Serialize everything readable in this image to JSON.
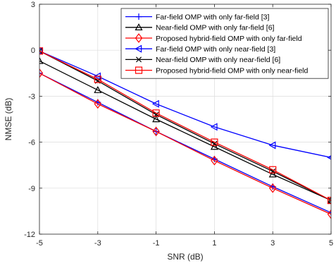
{
  "chart_data": {
    "type": "line",
    "title": "",
    "xlabel": "SNR (dB)",
    "ylabel": "NMSE (dB)",
    "xlim": [
      -5,
      5
    ],
    "ylim": [
      -12,
      3
    ],
    "xticks": [
      -5,
      -3,
      -1,
      1,
      3,
      5
    ],
    "yticks": [
      -12,
      -9,
      -6,
      -3,
      0,
      3
    ],
    "grid": true,
    "legend_position": "top-right",
    "x": [
      -5,
      -3,
      -1,
      1,
      3,
      5
    ],
    "series": [
      {
        "name": "Far-field OMP with only far-field [3]",
        "color": "#0000ff",
        "marker": "plus",
        "values": [
          -1.5,
          -3.4,
          -5.3,
          -7.1,
          -8.9,
          -10.6
        ]
      },
      {
        "name": "Near-field OMP with only far-field [6]",
        "color": "#000000",
        "marker": "triangle-up",
        "values": [
          -0.7,
          -2.6,
          -4.5,
          -6.3,
          -8.1,
          -9.8
        ]
      },
      {
        "name": "Proposed hybrid-field OMP with only far-field",
        "color": "#ff0000",
        "marker": "diamond",
        "values": [
          -1.5,
          -3.5,
          -5.3,
          -7.2,
          -9.0,
          -10.7
        ]
      },
      {
        "name": "Far-field OMP with only near-field [3]",
        "color": "#0000ff",
        "marker": "triangle-left",
        "values": [
          -0.05,
          -1.7,
          -3.5,
          -5.0,
          -6.2,
          -7.0
        ]
      },
      {
        "name": "Near-field OMP with only near-field [6]",
        "color": "#000000",
        "marker": "x",
        "values": [
          -0.05,
          -2.0,
          -4.2,
          -6.1,
          -7.9,
          -9.8
        ]
      },
      {
        "name": "Proposed hybrid-field OMP with only near-field",
        "color": "#ff0000",
        "marker": "square",
        "values": [
          -0.05,
          -1.9,
          -4.1,
          -6.0,
          -7.8,
          -9.8
        ]
      }
    ]
  }
}
